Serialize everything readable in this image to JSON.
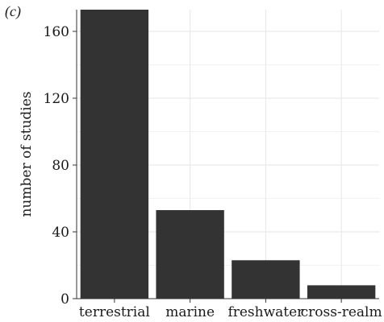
{
  "panel_label": "(c)",
  "chart_data": {
    "type": "bar",
    "categories": [
      "terrestrial",
      "marine",
      "freshwater",
      "cross-realm"
    ],
    "values": [
      173,
      53,
      23,
      8
    ],
    "title": "",
    "xlabel": "",
    "ylabel": "number of studies",
    "ylim": [
      0,
      173
    ],
    "yticks": [
      0,
      40,
      80,
      120,
      160
    ],
    "grid": true,
    "bar_color": "#333333",
    "grid_color": "#e6e6e6"
  }
}
